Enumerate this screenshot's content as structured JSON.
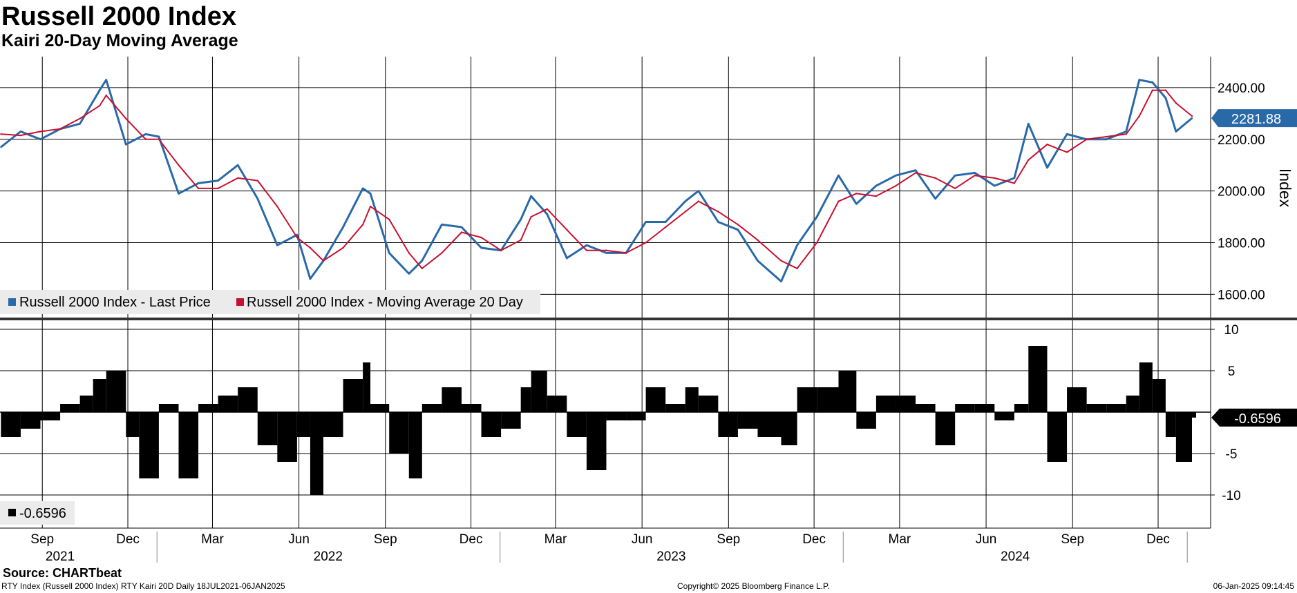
{
  "header": {
    "title": "Russell 2000 Index",
    "subtitle": "Kairi 20-Day Moving Average"
  },
  "footer": {
    "source": "Source: CHARTbeat",
    "description": "RTY Index (Russell 2000 Index) RTY Kairi 20D  Daily 18JUL2021-06JAN2025",
    "copyright": "Copyright© 2025 Bloomberg Finance L.P.",
    "timestamp": "06-Jan-2025 09:14:45"
  },
  "colors": {
    "last_price": "#2a69a8",
    "moving_average": "#c8102e",
    "kairi": "#000000",
    "grid": "#000000"
  },
  "chart_data": [
    {
      "type": "line",
      "panel": "upper",
      "ylabel": "Index",
      "ylim": [
        1510,
        2520
      ],
      "yticks": [
        1600,
        1800,
        2000,
        2200,
        2400
      ],
      "ytick_labels": [
        "1600.00",
        "1800.00",
        "2000.00",
        "2200.00",
        "2400.00"
      ],
      "grid": true,
      "legend_position": "bottom-left",
      "last_value_label": "2281.88",
      "x": [
        "2021-07-19",
        "2021-08-09",
        "2021-08-30",
        "2021-09-20",
        "2021-10-11",
        "2021-11-01",
        "2021-11-08",
        "2021-11-29",
        "2021-12-20",
        "2022-01-03",
        "2022-01-24",
        "2022-02-14",
        "2022-03-07",
        "2022-03-28",
        "2022-04-18",
        "2022-05-09",
        "2022-05-30",
        "2022-06-13",
        "2022-06-27",
        "2022-07-18",
        "2022-08-08",
        "2022-08-16",
        "2022-09-05",
        "2022-09-26",
        "2022-10-10",
        "2022-10-31",
        "2022-11-21",
        "2022-12-12",
        "2023-01-02",
        "2023-01-23",
        "2023-02-03",
        "2023-02-20",
        "2023-03-13",
        "2023-04-03",
        "2023-04-24",
        "2023-05-15",
        "2023-06-05",
        "2023-06-26",
        "2023-07-17",
        "2023-07-31",
        "2023-08-21",
        "2023-09-11",
        "2023-10-02",
        "2023-10-27",
        "2023-11-13",
        "2023-12-04",
        "2023-12-27",
        "2024-01-15",
        "2024-02-05",
        "2024-02-26",
        "2024-03-18",
        "2024-04-08",
        "2024-04-29",
        "2024-05-20",
        "2024-06-10",
        "2024-07-01",
        "2024-07-16",
        "2024-08-05",
        "2024-08-26",
        "2024-09-16",
        "2024-10-07",
        "2024-10-28",
        "2024-11-11",
        "2024-11-25",
        "2024-12-09",
        "2024-12-20",
        "2025-01-06"
      ],
      "series": [
        {
          "name": "Russell 2000 Index - Last Price",
          "values": [
            2170,
            2230,
            2200,
            2240,
            2260,
            2390,
            2430,
            2180,
            2220,
            2210,
            1990,
            2030,
            2040,
            2100,
            1970,
            1790,
            1830,
            1660,
            1730,
            1860,
            2010,
            1990,
            1760,
            1680,
            1730,
            1870,
            1860,
            1780,
            1770,
            1890,
            1980,
            1910,
            1740,
            1790,
            1760,
            1760,
            1880,
            1880,
            1960,
            2000,
            1880,
            1850,
            1730,
            1650,
            1790,
            1900,
            2060,
            1950,
            2020,
            2060,
            2080,
            1970,
            2060,
            2070,
            2020,
            2050,
            2260,
            2090,
            2220,
            2200,
            2200,
            2230,
            2430,
            2420,
            2360,
            2230,
            2281.88
          ]
        },
        {
          "name": "Russell 2000 Index - Moving Average 20 Day",
          "values": [
            2220,
            2215,
            2230,
            2240,
            2280,
            2330,
            2370,
            2280,
            2200,
            2200,
            2100,
            2010,
            2010,
            2050,
            2040,
            1940,
            1820,
            1780,
            1730,
            1780,
            1870,
            1940,
            1890,
            1760,
            1700,
            1760,
            1840,
            1820,
            1770,
            1810,
            1900,
            1930,
            1850,
            1770,
            1770,
            1760,
            1800,
            1860,
            1920,
            1960,
            1920,
            1870,
            1810,
            1730,
            1700,
            1800,
            1960,
            1990,
            1980,
            2020,
            2070,
            2050,
            2010,
            2060,
            2050,
            2030,
            2120,
            2180,
            2150,
            2200,
            2210,
            2220,
            2290,
            2390,
            2390,
            2340,
            2290
          ]
        }
      ]
    },
    {
      "type": "bar",
      "panel": "lower",
      "ylim": [
        -14,
        11
      ],
      "yticks": [
        -10,
        -5,
        5,
        10
      ],
      "ytick_labels": [
        "-10",
        "-5",
        "5",
        "10"
      ],
      "grid": true,
      "legend_position": "bottom-left",
      "legend_label": "-0.6596",
      "last_value_label": "-0.6596",
      "x": [
        "2021-07-19",
        "2021-08-09",
        "2021-08-30",
        "2021-09-20",
        "2021-10-11",
        "2021-10-25",
        "2021-11-08",
        "2021-11-29",
        "2021-12-13",
        "2022-01-03",
        "2022-01-24",
        "2022-02-14",
        "2022-03-07",
        "2022-03-28",
        "2022-04-18",
        "2022-05-09",
        "2022-05-30",
        "2022-06-13",
        "2022-06-27",
        "2022-07-18",
        "2022-08-08",
        "2022-08-16",
        "2022-09-05",
        "2022-09-26",
        "2022-10-10",
        "2022-10-31",
        "2022-11-21",
        "2022-12-12",
        "2023-01-02",
        "2023-01-23",
        "2023-02-03",
        "2023-02-20",
        "2023-03-13",
        "2023-04-03",
        "2023-04-24",
        "2023-05-15",
        "2023-06-05",
        "2023-06-26",
        "2023-07-17",
        "2023-07-31",
        "2023-08-21",
        "2023-09-11",
        "2023-10-02",
        "2023-10-27",
        "2023-11-13",
        "2023-12-04",
        "2023-12-27",
        "2024-01-15",
        "2024-02-05",
        "2024-02-26",
        "2024-03-18",
        "2024-04-08",
        "2024-04-29",
        "2024-05-20",
        "2024-06-10",
        "2024-07-01",
        "2024-07-16",
        "2024-08-05",
        "2024-08-26",
        "2024-09-16",
        "2024-10-07",
        "2024-10-28",
        "2024-11-11",
        "2024-11-25",
        "2024-12-09",
        "2024-12-20",
        "2025-01-06"
      ],
      "series": [
        {
          "values": [
            -3,
            -2,
            -1,
            1,
            2,
            4,
            5,
            -3,
            -8,
            1,
            -8,
            1,
            2,
            3,
            -4,
            -6,
            -3,
            -10,
            -3,
            4,
            6,
            1,
            -5,
            -8,
            1,
            3,
            1,
            -3,
            -2,
            3,
            5,
            2,
            -3,
            -7,
            -1,
            -1,
            3,
            1,
            3,
            2,
            -3,
            -2,
            -3,
            -4,
            3,
            3,
            5,
            -2,
            2,
            2,
            1,
            -4,
            1,
            1,
            -1,
            1,
            8,
            -6,
            3,
            1,
            1,
            2,
            6,
            4,
            -3,
            -6,
            -0.6596
          ]
        }
      ]
    }
  ],
  "x_axis": {
    "months": [
      {
        "label": "Sep",
        "date": "2021-09-01"
      },
      {
        "label": "Dec",
        "date": "2021-12-01"
      },
      {
        "label": "Mar",
        "date": "2022-03-01"
      },
      {
        "label": "Jun",
        "date": "2022-06-01"
      },
      {
        "label": "Sep",
        "date": "2022-09-01"
      },
      {
        "label": "Dec",
        "date": "2022-12-01"
      },
      {
        "label": "Mar",
        "date": "2023-03-01"
      },
      {
        "label": "Jun",
        "date": "2023-06-01"
      },
      {
        "label": "Sep",
        "date": "2023-09-01"
      },
      {
        "label": "Dec",
        "date": "2023-12-01"
      },
      {
        "label": "Mar",
        "date": "2024-03-01"
      },
      {
        "label": "Jun",
        "date": "2024-06-01"
      },
      {
        "label": "Sep",
        "date": "2024-09-01"
      },
      {
        "label": "Dec",
        "date": "2024-12-01"
      }
    ],
    "years": [
      {
        "label": "2021",
        "date": "2021-09-20",
        "boundary": "2022-01-01"
      },
      {
        "label": "2022",
        "date": "2022-07-02",
        "boundary": "2023-01-01"
      },
      {
        "label": "2023",
        "date": "2023-07-02",
        "boundary": "2024-01-01"
      },
      {
        "label": "2024",
        "date": "2024-07-02",
        "boundary": "2025-01-01"
      }
    ]
  }
}
